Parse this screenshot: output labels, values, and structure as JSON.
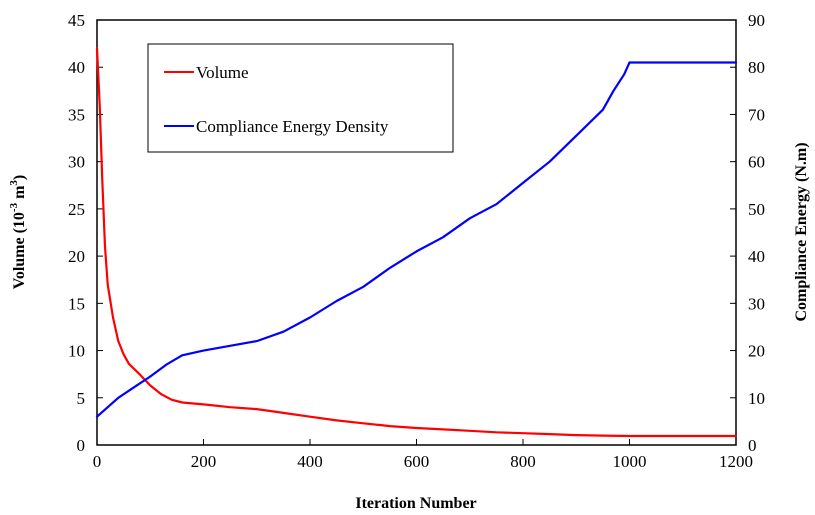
{
  "chart_data": {
    "type": "line",
    "title": "",
    "xlabel": "Iteration Number",
    "ylabel_left": {
      "base": "Volume (10",
      "exp1": "-3",
      "mid": " m",
      "exp2": "3",
      "end": ")"
    },
    "ylabel_right": "Compliance Energy (N.m)",
    "xlim": [
      0,
      1200
    ],
    "ylim_left": [
      0,
      45
    ],
    "ylim_right": [
      0,
      90
    ],
    "x_ticks": [
      "0",
      "200",
      "400",
      "600",
      "800",
      "1000",
      "1200"
    ],
    "y_left_ticks": [
      "0",
      "5",
      "10",
      "15",
      "20",
      "25",
      "30",
      "35",
      "40",
      "45"
    ],
    "y_right_ticks": [
      "0",
      "10",
      "20",
      "30",
      "40",
      "50",
      "60",
      "70",
      "80",
      "90"
    ],
    "grid": false,
    "legend_position": "top-left",
    "series": [
      {
        "name": "Volume",
        "axis": "left",
        "color": "#ff0000",
        "x": [
          0,
          5,
          10,
          15,
          20,
          30,
          40,
          50,
          60,
          80,
          100,
          120,
          140,
          160,
          200,
          250,
          300,
          350,
          400,
          450,
          500,
          550,
          600,
          650,
          700,
          750,
          800,
          850,
          900,
          950,
          1000,
          1100,
          1200
        ],
        "y": [
          42,
          36,
          28,
          21,
          17,
          13.5,
          11,
          9.6,
          8.6,
          7.5,
          6.3,
          5.4,
          4.8,
          4.5,
          4.3,
          4.0,
          3.8,
          3.4,
          3.0,
          2.6,
          2.3,
          2.0,
          1.8,
          1.65,
          1.5,
          1.35,
          1.25,
          1.15,
          1.05,
          1.0,
          0.95,
          0.95,
          0.95
        ]
      },
      {
        "name": "Compliance Energy Density",
        "axis": "right",
        "color": "#0000ff",
        "x": [
          0,
          20,
          40,
          60,
          80,
          100,
          130,
          160,
          200,
          250,
          300,
          350,
          400,
          450,
          500,
          550,
          600,
          650,
          700,
          750,
          800,
          850,
          900,
          950,
          970,
          990,
          1000,
          1100,
          1200
        ],
        "y": [
          6,
          8,
          10,
          11.5,
          13,
          14.5,
          17,
          19,
          20,
          21,
          22,
          24,
          27,
          30.5,
          33.5,
          37.5,
          41,
          44,
          48,
          51,
          55.5,
          60,
          65.5,
          71,
          75,
          78.5,
          81,
          81,
          81
        ]
      }
    ]
  }
}
